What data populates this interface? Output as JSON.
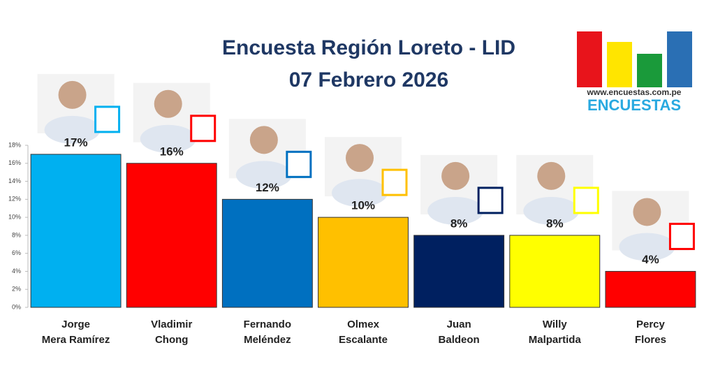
{
  "chart_data": {
    "type": "bar",
    "title": [
      "Encuesta Región Loreto - LID",
      "07 Febrero 2026"
    ],
    "categories": [
      [
        "Jorge",
        "Mera Ramírez"
      ],
      [
        "Vladimir",
        "Chong"
      ],
      [
        "Fernando",
        "Meléndez"
      ],
      [
        "Olmex",
        "Escalante"
      ],
      [
        "Juan",
        "Baldeon"
      ],
      [
        "Willy",
        "Malpartida"
      ],
      [
        "Percy",
        "Flores"
      ]
    ],
    "values": [
      17,
      16,
      12,
      10,
      8,
      8,
      4
    ],
    "value_labels": [
      "17%",
      "16%",
      "12%",
      "10%",
      "8%",
      "8%",
      "4%"
    ],
    "colors": [
      "#00b0f0",
      "#ff0000",
      "#0070c0",
      "#ffc000",
      "#002060",
      "#ffff00",
      "#ff0000"
    ],
    "ylim": [
      0,
      18
    ],
    "yticks": [
      {
        "value": 0,
        "label": "0%"
      },
      {
        "value": 2,
        "label": "2%"
      },
      {
        "value": 4,
        "label": "4%"
      },
      {
        "value": 6,
        "label": "6%"
      },
      {
        "value": 8,
        "label": "8%"
      },
      {
        "value": 10,
        "label": "10%"
      },
      {
        "value": 12,
        "label": "12%"
      },
      {
        "value": 14,
        "label": "14%"
      },
      {
        "value": 16,
        "label": "16%"
      },
      {
        "value": 18,
        "label": "18%"
      }
    ],
    "grid": false
  },
  "logo": {
    "url": "www.encuestas.com.pe",
    "name": "ENCUESTAS"
  }
}
